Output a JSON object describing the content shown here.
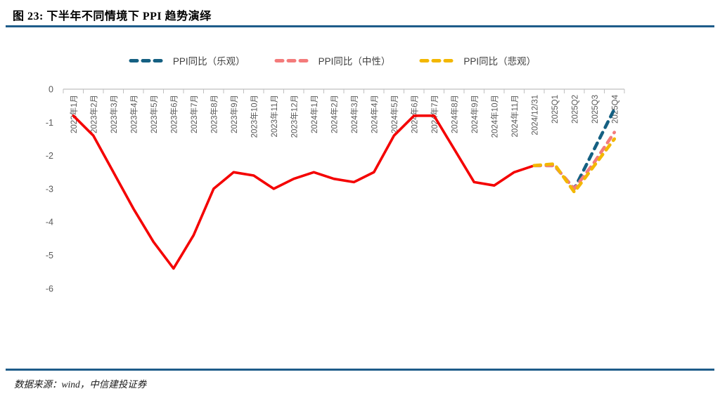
{
  "header": {
    "title": "图 23:  下半年不同情境下 PPI 趋势演绎",
    "rule_color": "#1E5C8A"
  },
  "legend": [
    {
      "label": "PPI同比（乐观）",
      "color": "#156082"
    },
    {
      "label": "PPI同比（中性）",
      "color": "#F47B7B"
    },
    {
      "label": "PPI同比（悲观）",
      "color": "#F3B700"
    }
  ],
  "footer": {
    "source": "数据来源：wind，中信建投证券"
  },
  "colors": {
    "actual_line": "#F40000",
    "axis": "#BFBFBF",
    "tick_label": "#595959"
  },
  "chart_data": {
    "type": "line",
    "title": "下半年不同情境下PPI趋势演绎",
    "categories": [
      "2023年1月",
      "2023年2月",
      "2023年3月",
      "2023年4月",
      "2023年5月",
      "2023年6月",
      "2023年7月",
      "2023年8月",
      "2023年9月",
      "2023年10月",
      "2023年11月",
      "2023年12月",
      "2024年1月",
      "2024年2月",
      "2024年3月",
      "2024年4月",
      "2024年5月",
      "2024年6月",
      "2024年7月",
      "2024年8月",
      "2024年9月",
      "2024年10月",
      "2024年11月",
      "2024/12/31",
      "2025Q1",
      "2025Q2",
      "2025Q3",
      "2025Q4"
    ],
    "ylim": [
      -6,
      0
    ],
    "yticks": [
      0,
      -1,
      -2,
      -3,
      -4,
      -5,
      -6
    ],
    "grid": false,
    "legend_position": "top",
    "series": [
      {
        "name": "PPI同比",
        "style": "solid",
        "color": "#F40000",
        "values": [
          -0.8,
          -1.4,
          -2.5,
          -3.6,
          -4.6,
          -5.4,
          -4.4,
          -3.0,
          -2.5,
          -2.6,
          -3.0,
          -2.7,
          -2.5,
          -2.7,
          -2.8,
          -2.5,
          -1.4,
          -0.8,
          -0.8,
          -1.8,
          -2.8,
          -2.9,
          -2.5,
          -2.3,
          null,
          null,
          null,
          null
        ]
      },
      {
        "name": "PPI同比（乐观）",
        "style": "dashed",
        "color": "#156082",
        "values": [
          null,
          null,
          null,
          null,
          null,
          null,
          null,
          null,
          null,
          null,
          null,
          null,
          null,
          null,
          null,
          null,
          null,
          null,
          null,
          null,
          null,
          null,
          null,
          -2.3,
          -2.3,
          -3.0,
          -1.8,
          -0.6
        ]
      },
      {
        "name": "PPI同比（中性）",
        "style": "dashed",
        "color": "#F47B7B",
        "values": [
          null,
          null,
          null,
          null,
          null,
          null,
          null,
          null,
          null,
          null,
          null,
          null,
          null,
          null,
          null,
          null,
          null,
          null,
          null,
          null,
          null,
          null,
          null,
          -2.3,
          -2.3,
          -3.0,
          -2.2,
          -1.3
        ]
      },
      {
        "name": "PPI同比（悲观）",
        "style": "dashed",
        "color": "#F3B700",
        "values": [
          null,
          null,
          null,
          null,
          null,
          null,
          null,
          null,
          null,
          null,
          null,
          null,
          null,
          null,
          null,
          null,
          null,
          null,
          null,
          null,
          null,
          null,
          null,
          -2.3,
          -2.25,
          -3.1,
          -2.3,
          -1.5
        ]
      }
    ]
  }
}
